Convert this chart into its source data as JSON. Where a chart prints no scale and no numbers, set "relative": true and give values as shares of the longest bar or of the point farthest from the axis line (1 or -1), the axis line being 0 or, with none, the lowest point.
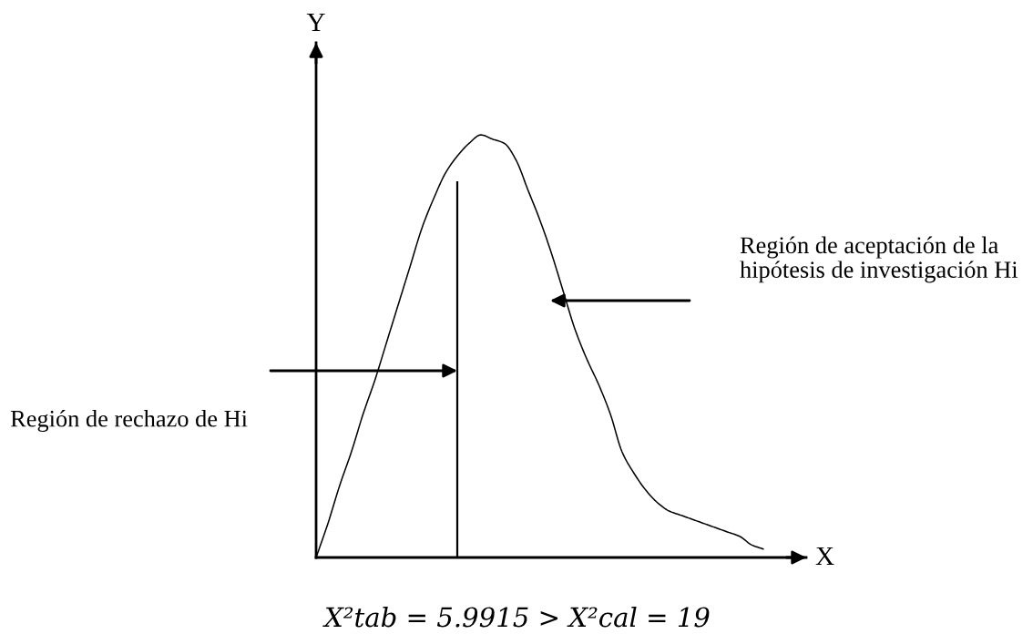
{
  "chart_data": {
    "type": "line",
    "relative": true,
    "xlabel": "X",
    "ylabel": "Y",
    "categories": [
      null,
      null,
      null,
      null,
      null,
      null,
      null,
      null,
      null,
      null,
      null,
      null,
      null,
      null,
      null,
      null,
      null,
      null,
      null,
      null,
      null,
      null,
      null,
      null,
      null,
      null,
      null,
      null,
      null,
      null,
      null,
      null,
      null,
      null,
      null,
      null,
      null,
      null,
      null
    ],
    "series": [
      {
        "color": "#000000",
        "values": [
          0,
          0.08,
          0.17,
          0.25,
          0.34,
          0.42,
          0.51,
          0.6,
          0.69,
          0.78,
          0.85,
          0.91,
          0.95,
          0.98,
          1,
          0.99,
          0.98,
          0.94,
          0.87,
          0.8,
          0.72,
          0.63,
          0.54,
          0.47,
          0.41,
          0.34,
          0.25,
          0.2,
          0.16,
          0.13,
          0.11,
          0.1,
          0.09,
          0.08,
          0.07,
          0.06,
          0.05,
          0.03,
          0.02
        ]
      }
    ],
    "annotations": [
      "Región de rechazo de Hi",
      "Región de aceptación de la hipótesis de investigación Hi",
      "X²tab = 5.9915 > X²cal = 19"
    ]
  }
}
